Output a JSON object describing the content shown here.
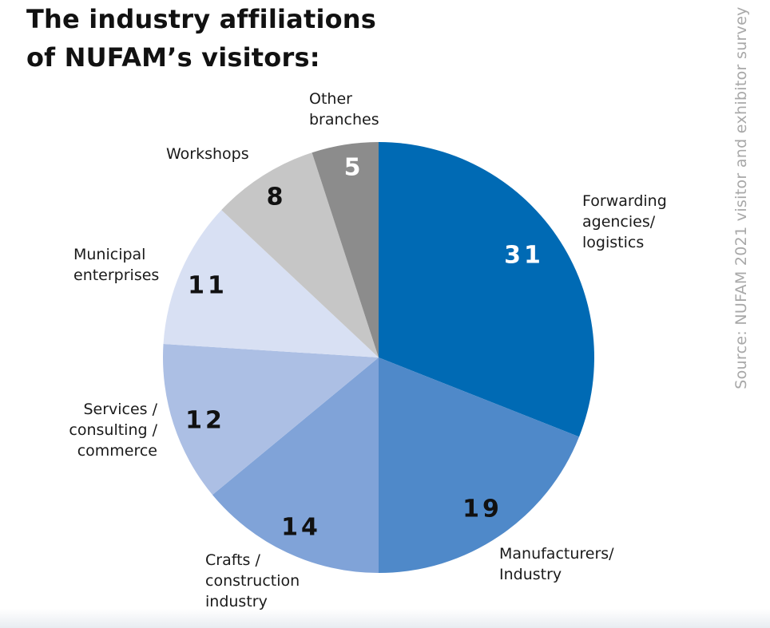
{
  "title_lines": [
    "The industry affiliations",
    "of NUFAM’s visitors:"
  ],
  "source": "Source: NUFAM 2021 visitor and exhibitor survey",
  "chart_data": {
    "type": "pie",
    "title": "The industry affiliations of NUFAM’s visitors:",
    "slices": [
      {
        "label_lines": [
          "Forwarding",
          "agencies/",
          "logistics"
        ],
        "value": 31,
        "color": "#006ab4"
      },
      {
        "label_lines": [
          "Manufacturers/",
          "Industry"
        ],
        "value": 19,
        "color": "#4f89c9"
      },
      {
        "label_lines": [
          "Crafts /",
          "construction",
          "industry"
        ],
        "value": 14,
        "color": "#80a3d8"
      },
      {
        "label_lines": [
          "Services /",
          "consulting /",
          "commerce"
        ],
        "value": 12,
        "color": "#acbfe4"
      },
      {
        "label_lines": [
          "Municipal",
          "enterprises"
        ],
        "value": 11,
        "color": "#d8e0f3"
      },
      {
        "label_lines": [
          "Workshops"
        ],
        "value": 8,
        "color": "#c6c6c6"
      },
      {
        "label_lines": [
          "Other",
          "branches"
        ],
        "value": 5,
        "color": "#8c8c8c"
      }
    ]
  }
}
